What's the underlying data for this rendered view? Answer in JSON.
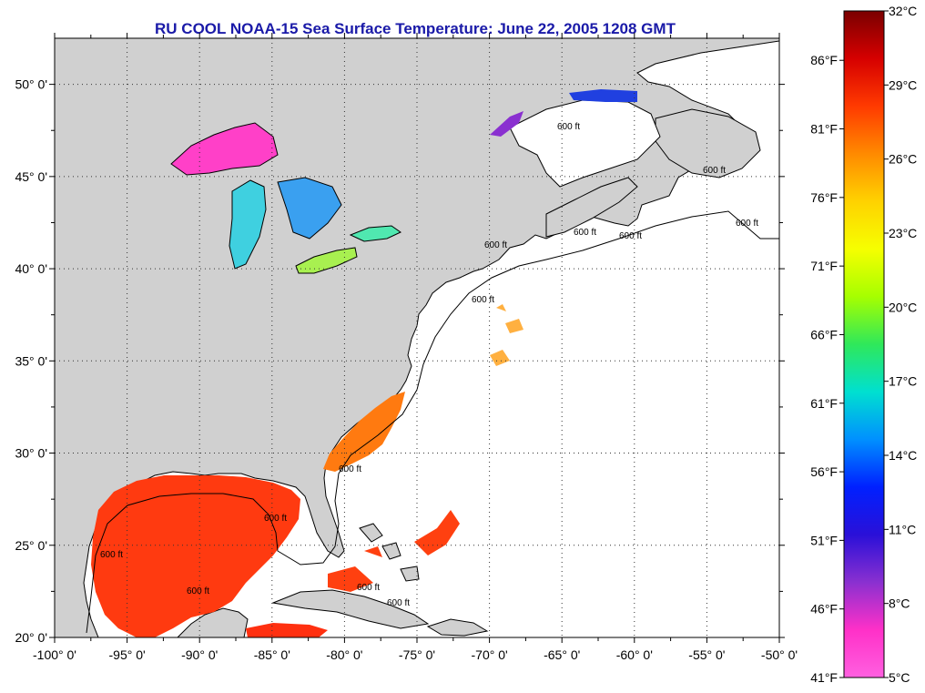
{
  "title": "RU COOL  NOAA-15  Sea Surface Temperature:  June 22, 2005 1208 GMT",
  "map": {
    "lon_range": [
      -100,
      -50
    ],
    "lat_range": [
      20,
      52.5
    ],
    "lon_ticks": [
      {
        "v": -100,
        "label": "-100° 0'"
      },
      {
        "v": -95,
        "label": "-95° 0'"
      },
      {
        "v": -90,
        "label": "-90° 0'"
      },
      {
        "v": -85,
        "label": "-85° 0'"
      },
      {
        "v": -80,
        "label": "-80° 0'"
      },
      {
        "v": -75,
        "label": "-75° 0'"
      },
      {
        "v": -70,
        "label": "-70° 0'"
      },
      {
        "v": -65,
        "label": "-65° 0'"
      },
      {
        "v": -60,
        "label": "-60° 0'"
      },
      {
        "v": -55,
        "label": "-55° 0'"
      },
      {
        "v": -50,
        "label": "-50° 0'"
      }
    ],
    "lat_ticks": [
      {
        "v": 20,
        "label": "20° 0'"
      },
      {
        "v": 25,
        "label": "25° 0'"
      },
      {
        "v": 30,
        "label": "30° 0'"
      },
      {
        "v": 35,
        "label": "35° 0'"
      },
      {
        "v": 40,
        "label": "40° 0'"
      },
      {
        "v": 45,
        "label": "45° 0'"
      },
      {
        "v": 50,
        "label": "50° 0'"
      }
    ],
    "grid": "dotted",
    "land_color": "#d0d0d0",
    "ocean_color": "#ffffff",
    "contour_label": "600 ft"
  },
  "colorbar": {
    "celsius_labels": [
      "32°C",
      "29°C",
      "26°C",
      "23°C",
      "20°C",
      "17°C",
      "14°C",
      "11°C",
      "8°C",
      "5°C"
    ],
    "fahrenheit_labels": [
      "86°F",
      "81°F",
      "76°F",
      "71°F",
      "66°F",
      "61°F",
      "56°F",
      "51°F",
      "46°F",
      "41°F"
    ],
    "stops": [
      "#7a0000",
      "#d60000",
      "#ff3a00",
      "#ff8a00",
      "#ffd200",
      "#f6ff00",
      "#a6ff00",
      "#2fe85a",
      "#00e0d0",
      "#0090ff",
      "#0020ff",
      "#2a10d8",
      "#8a30d0",
      "#ff30c8",
      "#ff60e0"
    ]
  }
}
